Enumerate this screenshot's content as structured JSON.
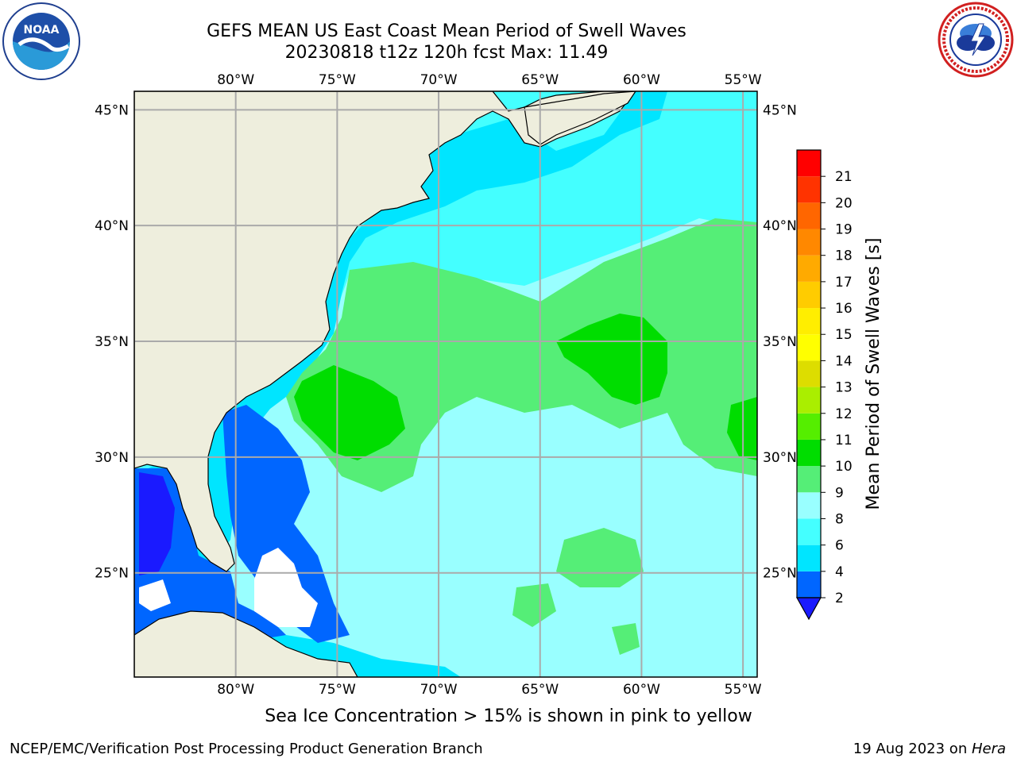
{
  "header": {
    "title_line1": "GEFS MEAN US East Coast Mean Period of Swell Waves",
    "title_line2": "20230818 t12z 120h fcst   Max: 11.49"
  },
  "map": {
    "lon_labels": [
      "80°W",
      "75°W",
      "70°W",
      "65°W",
      "60°W",
      "55°W"
    ],
    "lat_labels": [
      "45°N",
      "40°N",
      "35°N",
      "30°N",
      "25°N"
    ],
    "lon_values": [
      -80,
      -75,
      -70,
      -65,
      -60,
      -55
    ],
    "lat_values": [
      45,
      40,
      35,
      30,
      25
    ],
    "extent": {
      "lon_min": -85,
      "lon_max": -54.3,
      "lat_min": 20.5,
      "lat_max": 45.8
    },
    "colors": {
      "land": "#eeeedd",
      "grid": "#aaaaaa",
      "no_data": "#ffffff"
    }
  },
  "colorbar": {
    "label": "Mean Period of Swell Waves [s]",
    "ticks": [
      "2",
      "4",
      "6",
      "8",
      "9",
      "10",
      "11",
      "12",
      "13",
      "14",
      "15",
      "16",
      "17",
      "18",
      "19",
      "20",
      "21"
    ],
    "colors": [
      "#0066ff",
      "#00e5ff",
      "#44ffff",
      "#99ffff",
      "#55ee77",
      "#00dd00",
      "#55ee00",
      "#aaee00",
      "#dddd00",
      "#ffff00",
      "#ffee00",
      "#ffcc00",
      "#ffaa00",
      "#ff8800",
      "#ff6600",
      "#ff3300",
      "#ff0000"
    ],
    "under_color": "#1a1aff"
  },
  "footer": {
    "note": "Sea Ice Concentration > 15% is shown in pink to yellow",
    "credit_left": "NCEP/EMC/Verification Post Processing Product Generation Branch",
    "credit_right_prefix": "19 Aug 2023 on ",
    "credit_right_host": "Hera"
  },
  "logos": {
    "left": "noaa-logo",
    "right": "nws-logo"
  }
}
